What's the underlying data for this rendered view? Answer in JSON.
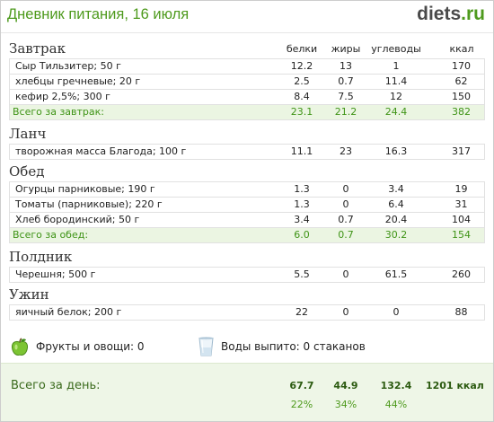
{
  "header": {
    "title": "Дневник питания, 16 июля",
    "logo_main": "diets",
    "logo_tld": ".ru"
  },
  "columns": {
    "protein": "белки",
    "fat": "жиры",
    "carbs": "углеводы",
    "kcal": "ккал"
  },
  "meals": [
    {
      "name": "Завтрак",
      "items": [
        {
          "name": "Сыр Тильзитер; 50 г",
          "protein": "12.2",
          "fat": "13",
          "carbs": "1",
          "kcal": "170"
        },
        {
          "name": "хлебцы гречневые; 20 г",
          "protein": "2.5",
          "fat": "0.7",
          "carbs": "11.4",
          "kcal": "62"
        },
        {
          "name": "кефир 2,5%; 300 г",
          "protein": "8.4",
          "fat": "7.5",
          "carbs": "12",
          "kcal": "150"
        }
      ],
      "total": {
        "name": "Всего за завтрак:",
        "protein": "23.1",
        "fat": "21.2",
        "carbs": "24.4",
        "kcal": "382"
      }
    },
    {
      "name": "Ланч",
      "items": [
        {
          "name": "творожная масса Благода; 100 г",
          "protein": "11.1",
          "fat": "23",
          "carbs": "16.3",
          "kcal": "317"
        }
      ]
    },
    {
      "name": "Обед",
      "items": [
        {
          "name": "Огурцы парниковые; 190 г",
          "protein": "1.3",
          "fat": "0",
          "carbs": "3.4",
          "kcal": "19"
        },
        {
          "name": "Томаты (парниковые); 220 г",
          "protein": "1.3",
          "fat": "0",
          "carbs": "6.4",
          "kcal": "31"
        },
        {
          "name": "Хлеб бородинский; 50 г",
          "protein": "3.4",
          "fat": "0.7",
          "carbs": "20.4",
          "kcal": "104"
        }
      ],
      "total": {
        "name": "Всего за обед:",
        "protein": "6.0",
        "fat": "0.7",
        "carbs": "30.2",
        "kcal": "154"
      }
    },
    {
      "name": "Полдник",
      "items": [
        {
          "name": "Черешня; 500 г",
          "protein": "5.5",
          "fat": "0",
          "carbs": "61.5",
          "kcal": "260"
        }
      ]
    },
    {
      "name": "Ужин",
      "items": [
        {
          "name": "яичный белок; 200 г",
          "protein": "22",
          "fat": "0",
          "carbs": "0",
          "kcal": "88"
        }
      ]
    }
  ],
  "extras": {
    "fruits_icon": "apple-icon",
    "fruits_text": "Фрукты и овощи: 0",
    "water_icon": "glass-icon",
    "water_text": "Воды выпито: 0 стаканов"
  },
  "day_total": {
    "label": "Всего за день:",
    "protein": "67.7",
    "fat": "44.9",
    "carbs": "132.4",
    "kcal": "1201 ккал",
    "protein_pct": "22%",
    "fat_pct": "34%",
    "carbs_pct": "44%"
  },
  "colors": {
    "accent_green": "#4e9a1d",
    "total_text": "#3f9417",
    "total_row_bg": "#ebf5e2",
    "footer_bg": "#eef6e7",
    "logo_gray": "#4a4a4a"
  }
}
